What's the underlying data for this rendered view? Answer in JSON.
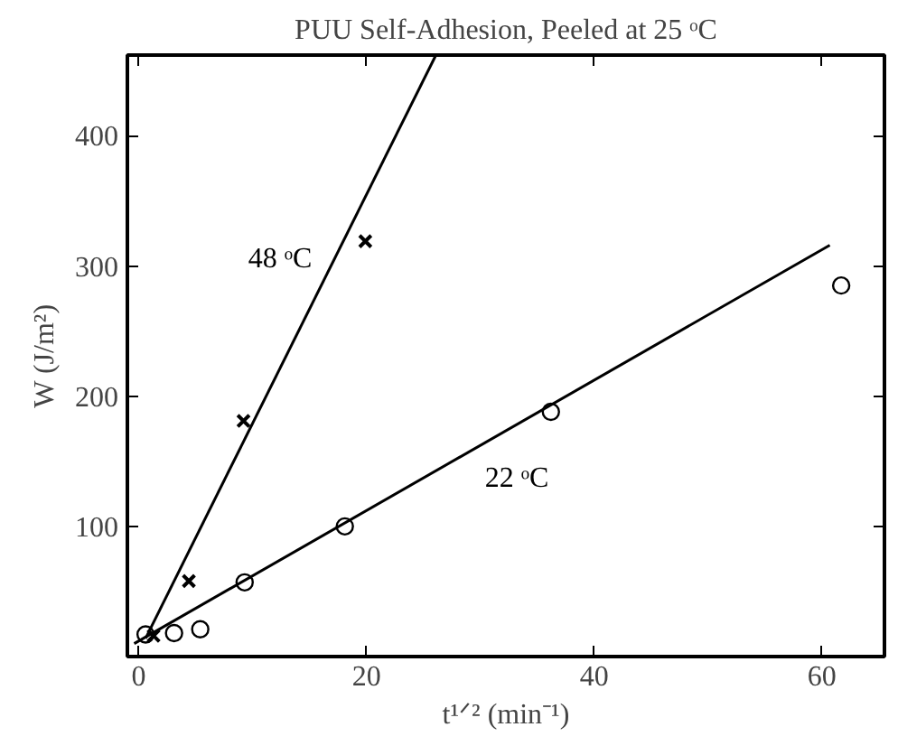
{
  "chart_data": {
    "type": "scatter",
    "title": "PUU Self-Adhesion, Peeled at 25 ᵒC",
    "xlabel": "t¹ᐟ² (min⁻¹)",
    "ylabel": "W (J/m²)",
    "xlim": [
      -1,
      65.5
    ],
    "ylim": [
      0,
      462
    ],
    "xticks": [
      0,
      20,
      40,
      60
    ],
    "yticks": [
      100,
      200,
      300,
      400
    ],
    "grid": false,
    "series": [
      {
        "marker": "cross",
        "color": "#000000",
        "x": [
          1.3,
          4.4,
          9.2,
          19.9
        ],
        "values": [
          16,
          58,
          181,
          319
        ]
      },
      {
        "marker": "circle",
        "color": "#000000",
        "x": [
          0.6,
          3.1,
          5.4,
          9.3,
          18.1,
          36.2,
          61.7
        ],
        "values": [
          17,
          18,
          21,
          57,
          100,
          188,
          285
        ]
      },
      {
        "type": "line",
        "name": "48 ᵒC",
        "color": "#000000",
        "x": [
          0.6,
          26.1
        ],
        "values": [
          14,
          462
        ]
      },
      {
        "type": "line",
        "name": "22 ᵒC",
        "color": "#000000",
        "x": [
          -0.4,
          60.7
        ],
        "values": [
          10,
          316
        ]
      }
    ]
  }
}
